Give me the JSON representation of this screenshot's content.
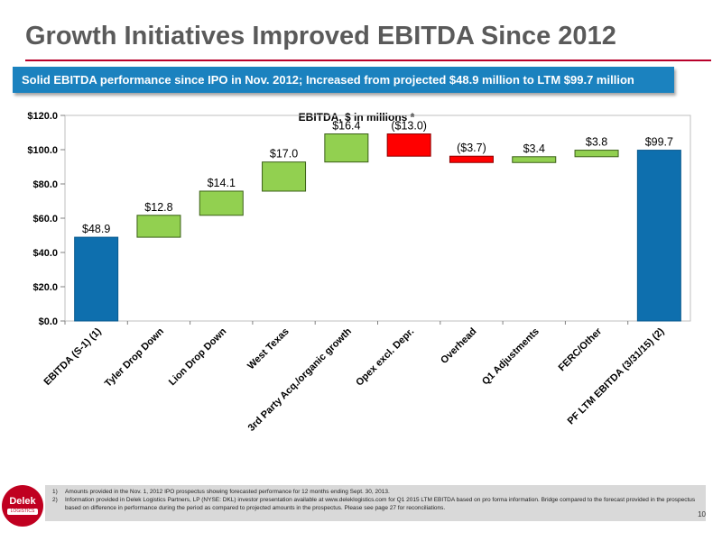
{
  "title": "Growth Initiatives Improved EBITDA Since 2012",
  "banner": "Solid EBITDA performance since IPO in Nov. 2012; Increased from projected $48.9 million to LTM $99.7 million",
  "chart_data": {
    "type": "waterfall",
    "title": "EBITDA, $ in millions *",
    "ylim": [
      0,
      120
    ],
    "yticks": [
      0,
      20,
      40,
      60,
      80,
      100,
      120
    ],
    "ytick_labels": [
      "$0.0",
      "$20.0",
      "$40.0",
      "$60.0",
      "$80.0",
      "$100.0",
      "$120.0"
    ],
    "grid": false,
    "categories": [
      "EBITDA (S-1) (1)",
      "Tyler Drop Down",
      "Lion Drop Down",
      "West Texas",
      "3rd Party Acq./organic growth",
      "Opex excl. Depr.",
      "Overhead",
      "Q1 Adjustments",
      "FERC/Other",
      "PF LTM EBITDA (3/31/15) (2)"
    ],
    "values": [
      48.9,
      12.8,
      14.1,
      17.0,
      16.4,
      -13.0,
      -3.7,
      3.4,
      3.8,
      99.7
    ],
    "value_labels": [
      "$48.9",
      "$12.8",
      "$14.1",
      "$17.0",
      "$16.4",
      "($13.0)",
      "($3.7)",
      "$3.4",
      "$3.8",
      "$99.7"
    ],
    "bar_kinds": [
      "total",
      "increase",
      "increase",
      "increase",
      "increase",
      "decrease",
      "decrease",
      "increase",
      "increase",
      "total"
    ],
    "colors": {
      "total": "#0e6fae",
      "increase": "#92d050",
      "decrease": "#ff0000"
    }
  },
  "notes": [
    {
      "num": "1)",
      "text": "Amounts provided in the Nov. 1, 2012 IPO prospectus showing forecasted performance for 12 months ending Sept. 30, 2013."
    },
    {
      "num": "2)",
      "text": "Information provided in Delek Logistics Partners, LP (NYSE: DKL) investor presentation available at www.deleklogistics.com for Q1 2015 LTM EBITDA based on pro forma information. Bridge compared to the forecast provided in the prospectus based on difference in performance during the period as compared to projected amounts in the prospectus. Please see page 27 for reconciliations."
    }
  ],
  "logo": {
    "name": "Delek",
    "sub": "LOGISTICS"
  },
  "page_number": "10"
}
